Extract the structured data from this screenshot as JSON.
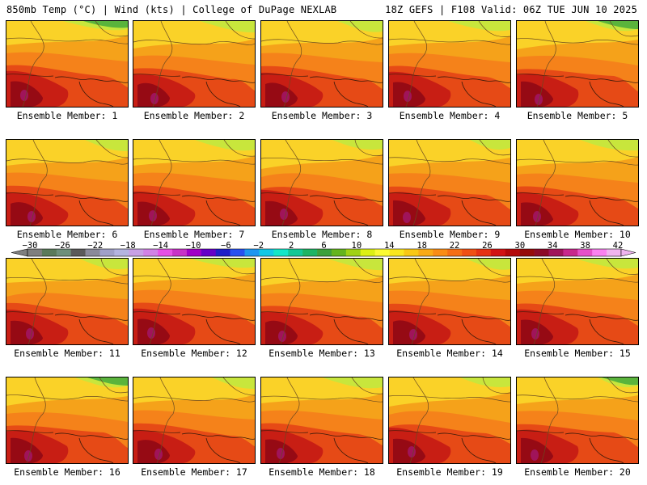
{
  "header": {
    "left": "850mb Temp (°C) | Wind (kts) | College of DuPage NEXLAB",
    "right": "18Z GEFS | F108 Valid: 06Z TUE JUN 10 2025"
  },
  "colorbar": {
    "tick_labels": [
      "−30",
      "−26",
      "−22",
      "−18",
      "−14",
      "−10",
      "−6",
      "−2",
      "2",
      "6",
      "10",
      "14",
      "18",
      "22",
      "26",
      "30",
      "34",
      "38",
      "42"
    ],
    "colors": [
      "#7f7f7f",
      "#5a7a5a",
      "#6e8f7a",
      "#5a5a5a",
      "#8a8a9a",
      "#a0a0c8",
      "#b4b4e0",
      "#c8a0e6",
      "#d282e6",
      "#e650e6",
      "#c832c8",
      "#a000c8",
      "#6400c8",
      "#1e1ec8",
      "#2850f0",
      "#1e96f0",
      "#14c8e6",
      "#14e6c8",
      "#14c896",
      "#1eb464",
      "#3ca03c",
      "#64b41e",
      "#a0d214",
      "#dcf014",
      "#fafa32",
      "#fae61e",
      "#fac814",
      "#faaa14",
      "#fa8c14",
      "#f56e14",
      "#f05014",
      "#e63214",
      "#d21414",
      "#b40a0a",
      "#960a0a",
      "#8c0a28",
      "#a0145a",
      "#c8288c",
      "#e650c8",
      "#fa82f0",
      "#f0b4f0"
    ]
  },
  "members": [
    {
      "label": "Ensemble Member: 1"
    },
    {
      "label": "Ensemble Member: 2"
    },
    {
      "label": "Ensemble Member: 3"
    },
    {
      "label": "Ensemble Member: 4"
    },
    {
      "label": "Ensemble Member: 5"
    },
    {
      "label": "Ensemble Member: 6"
    },
    {
      "label": "Ensemble Member: 7"
    },
    {
      "label": "Ensemble Member: 8"
    },
    {
      "label": "Ensemble Member: 9"
    },
    {
      "label": "Ensemble Member: 10"
    },
    {
      "label": "Ensemble Member: 11"
    },
    {
      "label": "Ensemble Member: 12"
    },
    {
      "label": "Ensemble Member: 13"
    },
    {
      "label": "Ensemble Member: 14"
    },
    {
      "label": "Ensemble Member: 15"
    },
    {
      "label": "Ensemble Member: 16"
    },
    {
      "label": "Ensemble Member: 17"
    },
    {
      "label": "Ensemble Member: 18"
    },
    {
      "label": "Ensemble Member: 19"
    },
    {
      "label": "Ensemble Member: 20"
    }
  ]
}
